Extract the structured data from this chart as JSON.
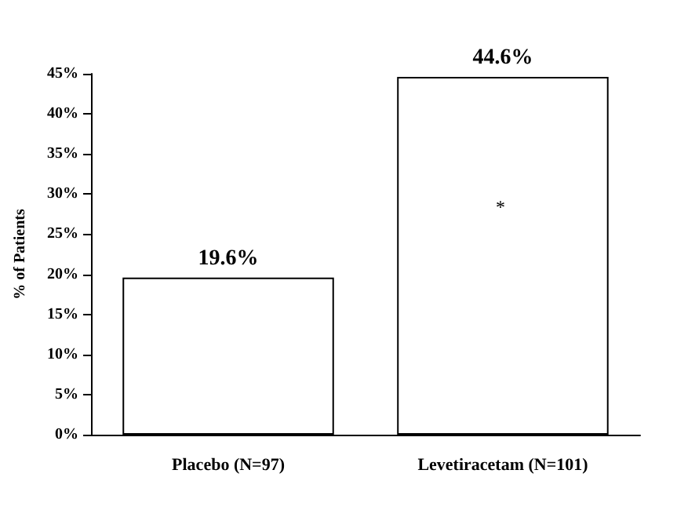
{
  "chart_data": {
    "type": "bar",
    "ylabel": "% of Patients",
    "categories": [
      "Placebo (N=97)",
      "Levetiracetam (N=101)"
    ],
    "values": [
      19.6,
      44.6
    ],
    "color": "#ffffff",
    "value_labels": [
      "19.6%",
      "44.6%"
    ],
    "annotations": [
      "*"
    ],
    "ylim": [
      0,
      45
    ],
    "yticks": [
      {
        "value": 0,
        "label": "0%"
      },
      {
        "value": 5,
        "label": "5%"
      },
      {
        "value": 10,
        "label": "10%"
      },
      {
        "value": 15,
        "label": "15%"
      },
      {
        "value": 20,
        "label": "20%"
      },
      {
        "value": 25,
        "label": "25%"
      },
      {
        "value": 30,
        "label": "30%"
      },
      {
        "value": 35,
        "label": "35%"
      },
      {
        "value": 40,
        "label": "40%"
      },
      {
        "value": 45,
        "label": "45%"
      }
    ],
    "grid": false
  }
}
